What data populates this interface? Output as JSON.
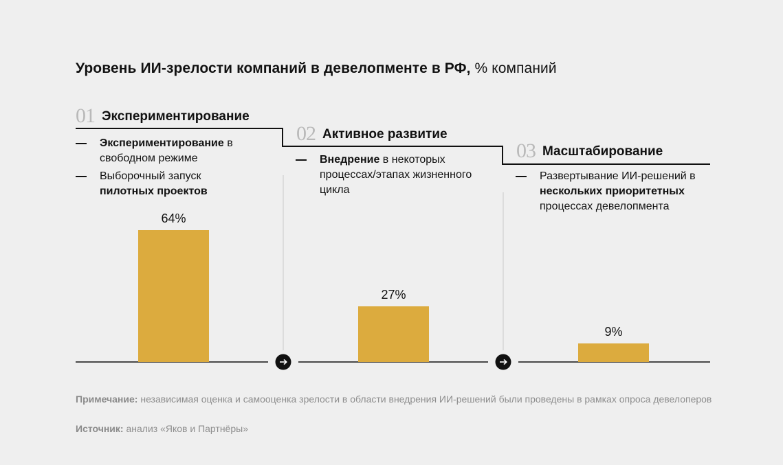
{
  "title": {
    "bold": "Уровень ИИ-зрелости компаний в девелопменте в РФ,",
    "regular": " % компаний"
  },
  "stages": [
    {
      "number": "01",
      "name": "Экспериментирование",
      "items": [
        [
          {
            "text": "Экспериментирование",
            "bold": true
          },
          {
            "text": " в свободном режиме",
            "bold": false
          }
        ],
        [
          {
            "text": "Выборочный запуск ",
            "bold": false
          },
          {
            "text": "пилотных проектов",
            "bold": true
          }
        ]
      ]
    },
    {
      "number": "02",
      "name": "Активное развитие",
      "items": [
        [
          {
            "text": "Внедрение",
            "bold": true
          },
          {
            "text": " в некоторых процессах/этапах жизненного цикла",
            "bold": false
          }
        ]
      ]
    },
    {
      "number": "03",
      "name": "Масштабирование",
      "items": [
        [
          {
            "text": "Развертывание ИИ-решений в ",
            "bold": false
          },
          {
            "text": "нескольких приоритетных",
            "bold": true
          },
          {
            "text": " процессах девелопмента",
            "bold": false
          }
        ]
      ]
    }
  ],
  "chart_data": {
    "type": "bar",
    "categories": [
      "Экспериментирование",
      "Активное развитие",
      "Масштабирование"
    ],
    "values": [
      64,
      27,
      9
    ],
    "data_labels": [
      "64%",
      "27%",
      "9%"
    ],
    "ylim": [
      0,
      64
    ],
    "bar_color": "#dcab3e",
    "grid": false
  },
  "note": {
    "label": "Примечание:",
    "text": " независимая оценка и самооценка зрелости в области внедрения ИИ-решений были проведены в рамках опроса девелоперов"
  },
  "source": {
    "label": "Источник:",
    "text": " анализ «Яков и Партнёры»"
  },
  "icons": {
    "arrow": "arrow-right-icon",
    "arrow_glyph": "→"
  },
  "colors": {
    "background": "#efefef",
    "bar": "#dcab3e",
    "note": "#8d8d8d",
    "divider": "#cfcfcf"
  }
}
